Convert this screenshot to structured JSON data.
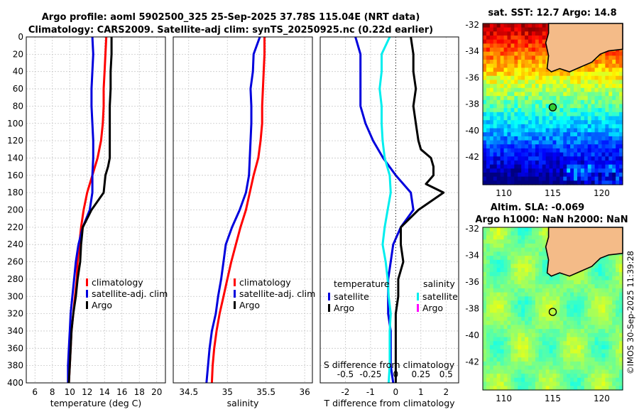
{
  "title_line1": "Argo profile: aoml 5902500_325 25-Sep-2025 37.78S 115.04E (NRT data)",
  "title_line2": "Climatology: CARS2009. Satellite-adj clim: synTS_20250925.nc (0.22d earlier)",
  "watermark": "©IMOS 30-Sep-2025 11:39:28",
  "colors": {
    "climatology": "#ff0000",
    "satellite": "#0000dd",
    "argo": "#000000",
    "satellite_t_diff": "#0000dd",
    "satellite_s_diff": "#00eeee",
    "argo_s_diff": "#ff00ff"
  },
  "chart_data": [
    {
      "type": "line",
      "panel": "temperature",
      "xlabel": "temperature (deg C)",
      "ylabel": "",
      "xlim": [
        5,
        21
      ],
      "ylim": [
        400,
        0
      ],
      "xticks": [
        6,
        8,
        10,
        12,
        14,
        16,
        18,
        20
      ],
      "yticks": [
        0,
        20,
        40,
        60,
        80,
        100,
        120,
        140,
        160,
        180,
        200,
        220,
        240,
        260,
        280,
        300,
        320,
        340,
        360,
        380,
        400
      ],
      "grid": true,
      "legend": [
        "climatology",
        "satellite-adj. clim",
        "Argo"
      ],
      "legend_placement": "lower-right",
      "series": [
        {
          "name": "climatology",
          "depth": [
            0,
            20,
            40,
            60,
            80,
            100,
            120,
            140,
            160,
            180,
            200,
            220,
            240,
            260,
            280,
            300,
            320,
            340,
            360,
            380,
            400
          ],
          "values": [
            14.2,
            14.1,
            14.0,
            13.9,
            13.9,
            13.8,
            13.6,
            13.2,
            12.6,
            12.0,
            11.6,
            11.3,
            11.1,
            10.9,
            10.8,
            10.6,
            10.4,
            10.2,
            10.1,
            10.0,
            9.9
          ]
        },
        {
          "name": "satellite-adj. clim",
          "depth": [
            0,
            20,
            40,
            60,
            80,
            100,
            120,
            140,
            160,
            180,
            200,
            220,
            240,
            260,
            280,
            300,
            320,
            340,
            360,
            380,
            400
          ],
          "values": [
            12.6,
            12.7,
            12.6,
            12.5,
            12.5,
            12.6,
            12.7,
            12.7,
            12.6,
            12.6,
            12.3,
            11.5,
            11.0,
            10.7,
            10.5,
            10.3,
            10.1,
            10.0,
            9.9,
            9.8,
            9.8
          ]
        },
        {
          "name": "Argo",
          "depth": [
            0,
            20,
            40,
            60,
            80,
            100,
            120,
            140,
            150,
            160,
            180,
            200,
            220,
            240,
            260,
            280,
            300,
            320,
            340,
            360,
            380,
            400
          ],
          "values": [
            14.8,
            14.8,
            14.7,
            14.7,
            14.6,
            14.6,
            14.6,
            14.6,
            14.4,
            14.1,
            13.9,
            12.5,
            11.5,
            11.3,
            11.2,
            10.9,
            10.7,
            10.4,
            10.2,
            10.1,
            10.0,
            9.9
          ]
        }
      ]
    },
    {
      "type": "line",
      "panel": "salinity",
      "xlabel": "salinity",
      "xlim": [
        34.3,
        36.1
      ],
      "ylim": [
        400,
        0
      ],
      "xticks": [
        34.5,
        35,
        35.5,
        36
      ],
      "xtick_labels": [
        "34.5",
        "35",
        "35.5",
        "36"
      ],
      "grid": true,
      "legend": [
        "climatology",
        "satellite-adj. clim",
        "Argo"
      ],
      "legend_placement": "lower-right",
      "series": [
        {
          "name": "climatology",
          "depth": [
            0,
            20,
            40,
            60,
            80,
            100,
            120,
            140,
            160,
            180,
            200,
            220,
            240,
            260,
            280,
            300,
            320,
            340,
            360,
            380,
            400
          ],
          "values": [
            35.48,
            35.48,
            35.47,
            35.46,
            35.45,
            35.45,
            35.43,
            35.4,
            35.34,
            35.29,
            35.24,
            35.17,
            35.11,
            35.05,
            35.0,
            34.95,
            34.9,
            34.86,
            34.83,
            34.81,
            34.8
          ]
        },
        {
          "name": "satellite-adj. clim",
          "depth": [
            0,
            20,
            40,
            60,
            80,
            100,
            120,
            140,
            160,
            180,
            200,
            220,
            240,
            260,
            280,
            300,
            320,
            340,
            360,
            380,
            400
          ],
          "values": [
            35.42,
            35.34,
            35.33,
            35.3,
            35.31,
            35.31,
            35.3,
            35.29,
            35.28,
            35.24,
            35.16,
            35.06,
            34.98,
            34.95,
            34.92,
            34.88,
            34.85,
            34.8,
            34.77,
            34.75,
            34.73
          ]
        }
      ]
    },
    {
      "type": "line",
      "panel": "difference",
      "xlabel": "T difference from climatology",
      "xlabel_top": "S difference from climatology",
      "xlim": [
        -3,
        2.5
      ],
      "xlim_top": [
        -0.75,
        0.625
      ],
      "ylim": [
        400,
        0
      ],
      "xticks": [
        -2,
        -1,
        0,
        1,
        2
      ],
      "xticks_top": [
        "-0.5",
        "-0.25",
        "0",
        "0.25",
        "0.5"
      ],
      "grid": true,
      "legend_temperature_title": "temperature",
      "legend_salinity_title": "salinity",
      "legend_temperature": [
        "satellite",
        "Argo"
      ],
      "legend_salinity": [
        "satellite",
        "Argo"
      ],
      "legend_placement": "lower-center",
      "series": [
        {
          "name": "T satellite",
          "depth": [
            0,
            20,
            40,
            60,
            80,
            100,
            120,
            140,
            160,
            180,
            200,
            220,
            240,
            260,
            280,
            300,
            320,
            340,
            360,
            380,
            400
          ],
          "values": [
            -1.6,
            -1.4,
            -1.4,
            -1.4,
            -1.4,
            -1.2,
            -0.9,
            -0.5,
            0.0,
            0.6,
            0.7,
            0.2,
            -0.1,
            -0.2,
            -0.3,
            -0.3,
            -0.3,
            -0.2,
            -0.2,
            -0.2,
            -0.1
          ]
        },
        {
          "name": "S satellite",
          "depth": [
            0,
            20,
            40,
            60,
            80,
            100,
            120,
            140,
            160,
            180,
            200,
            220,
            240,
            260,
            280,
            300,
            320,
            340,
            360,
            380,
            400
          ],
          "values": [
            -0.06,
            -0.14,
            -0.14,
            -0.16,
            -0.14,
            -0.14,
            -0.13,
            -0.11,
            -0.06,
            -0.05,
            -0.08,
            -0.11,
            -0.13,
            -0.1,
            -0.08,
            -0.07,
            -0.05,
            -0.06,
            -0.06,
            -0.06,
            -0.07
          ]
        },
        {
          "name": "T Argo",
          "depth": [
            0,
            20,
            40,
            60,
            80,
            100,
            120,
            130,
            140,
            150,
            160,
            170,
            180,
            200,
            220,
            240,
            260,
            280,
            300,
            320,
            340,
            360,
            380,
            400
          ],
          "values": [
            0.6,
            0.7,
            0.7,
            0.8,
            0.7,
            0.8,
            0.9,
            1.0,
            1.4,
            1.5,
            1.5,
            1.2,
            1.9,
            0.9,
            0.2,
            0.2,
            0.3,
            0.1,
            0.1,
            0.0,
            0.0,
            0.0,
            0.0,
            0.0
          ]
        }
      ]
    }
  ],
  "maps": {
    "sst": {
      "title": "sat. SST: 12.7 Argo: 14.8",
      "colormap": "jet",
      "xticks": [
        "110",
        "115",
        "120"
      ],
      "yticks": [
        "-32",
        "-34",
        "-36",
        "-38",
        "-40",
        "-42"
      ]
    },
    "sla": {
      "title1": "Altim. SLA: -0.069",
      "title2": "Argo h1000: NaN h2000: NaN",
      "colormap": "jet",
      "xticks": [
        "110",
        "115",
        "120"
      ],
      "yticks": [
        "-32",
        "-34",
        "-36",
        "-38",
        "-40",
        "-42"
      ]
    },
    "land_color": "#f4bb88",
    "float_marker": "circle"
  }
}
